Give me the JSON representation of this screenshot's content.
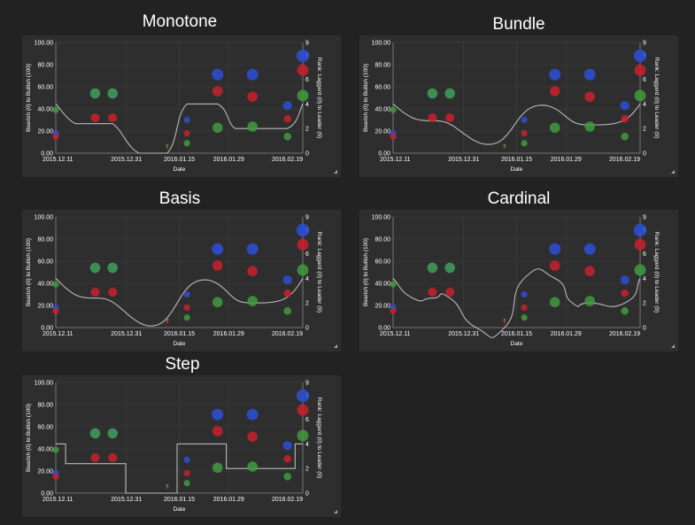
{
  "chart_data": [
    {
      "type": "scatter",
      "title": "Monotone",
      "curve": "monotone",
      "xlabel": "Date",
      "ylabel": "Bearish (0) to Bullish (100)",
      "y2label": "Rank: Laggard (0) to Leader (9)",
      "x_ticks": [
        "2015.12.11",
        "2015.12.31",
        "2016.01.15",
        "2016.01.29",
        "2016.02.19"
      ],
      "y_ticks": [
        "0.00",
        "20.00",
        "40.00",
        "60.00",
        "80.00",
        "100.00"
      ],
      "y2_ticks": [
        "0",
        "2",
        "4",
        "6",
        "8",
        "9"
      ],
      "ylim": [
        0,
        100
      ],
      "y2lim": [
        0,
        9
      ],
      "grid": true,
      "series": [
        {
          "color": "#2a4fd6",
          "points": [
            [
              0,
              18,
              5
            ],
            [
              18,
              54,
              8
            ],
            [
              26,
              54,
              8
            ],
            [
              60,
              30,
              5
            ],
            [
              74,
              71,
              9
            ],
            [
              90,
              71,
              9
            ],
            [
              106,
              43,
              7
            ],
            [
              113,
              88,
              10
            ]
          ]
        },
        {
          "color": "#c8202c",
          "points": [
            [
              0,
              15,
              5
            ],
            [
              18,
              32,
              7
            ],
            [
              26,
              32,
              7
            ],
            [
              51,
              5,
              2
            ],
            [
              60,
              18,
              5
            ],
            [
              74,
              56,
              8
            ],
            [
              90,
              51,
              8
            ],
            [
              106,
              31,
              6
            ],
            [
              113,
              75,
              9
            ]
          ]
        },
        {
          "color": "#3f9a3f",
          "points": [
            [
              0,
              39,
              5
            ],
            [
              18,
              54,
              8
            ],
            [
              26,
              54,
              8
            ],
            [
              51,
              7,
              2
            ],
            [
              60,
              9,
              5
            ],
            [
              74,
              23,
              8
            ],
            [
              90,
              24,
              8
            ],
            [
              106,
              15,
              6
            ],
            [
              113,
              52,
              9
            ]
          ]
        }
      ],
      "line": [
        [
          0,
          4
        ],
        [
          9,
          2.4
        ],
        [
          18,
          2.4
        ],
        [
          26,
          2.4
        ],
        [
          38,
          0
        ],
        [
          51,
          0
        ],
        [
          60,
          4
        ],
        [
          74,
          4
        ],
        [
          82,
          2
        ],
        [
          90,
          2
        ],
        [
          106,
          2
        ],
        [
          113,
          4
        ]
      ]
    },
    {
      "type": "scatter",
      "title": "Bundle",
      "curve": "bundle",
      "xlabel": "Date",
      "ylabel": "Bearish (0) to Bullish (100)",
      "y2label": "Rank: Laggard (0) to Leader (9)",
      "x_ticks": [
        "2015.12.11",
        "2015.12.31",
        "2016.01.15",
        "2016.01.29",
        "2016.02.19"
      ],
      "y_ticks": [
        "0.00",
        "20.00",
        "40.00",
        "60.00",
        "80.00",
        "100.00"
      ],
      "y2_ticks": [
        "0",
        "2",
        "4",
        "6",
        "8",
        "9"
      ],
      "ylim": [
        0,
        100
      ],
      "y2lim": [
        0,
        9
      ],
      "grid": true,
      "series": [
        {
          "color": "#2a4fd6",
          "points": [
            [
              0,
              18,
              5
            ],
            [
              18,
              54,
              8
            ],
            [
              26,
              54,
              8
            ],
            [
              60,
              30,
              5
            ],
            [
              74,
              71,
              9
            ],
            [
              90,
              71,
              9
            ],
            [
              106,
              43,
              7
            ],
            [
              113,
              88,
              10
            ]
          ]
        },
        {
          "color": "#c8202c",
          "points": [
            [
              0,
              15,
              5
            ],
            [
              18,
              32,
              7
            ],
            [
              26,
              32,
              7
            ],
            [
              51,
              5,
              2
            ],
            [
              60,
              18,
              5
            ],
            [
              74,
              56,
              8
            ],
            [
              90,
              51,
              8
            ],
            [
              106,
              31,
              6
            ],
            [
              113,
              75,
              9
            ]
          ]
        },
        {
          "color": "#3f9a3f",
          "points": [
            [
              0,
              39,
              5
            ],
            [
              18,
              54,
              8
            ],
            [
              26,
              54,
              8
            ],
            [
              51,
              7,
              2
            ],
            [
              60,
              9,
              5
            ],
            [
              74,
              23,
              8
            ],
            [
              90,
              24,
              8
            ],
            [
              106,
              15,
              6
            ],
            [
              113,
              52,
              9
            ]
          ]
        }
      ],
      "line": [
        [
          0,
          4
        ],
        [
          9,
          2.4
        ],
        [
          18,
          2.4
        ],
        [
          26,
          2.4
        ],
        [
          38,
          0
        ],
        [
          51,
          0
        ],
        [
          60,
          4
        ],
        [
          74,
          4
        ],
        [
          82,
          2
        ],
        [
          90,
          2
        ],
        [
          106,
          2
        ],
        [
          113,
          4
        ]
      ]
    },
    {
      "type": "scatter",
      "title": "Basis",
      "curve": "basis",
      "xlabel": "Date",
      "ylabel": "Bearish (0) to Bullish (100)",
      "y2label": "Rank: Laggard (0) to Leader (9)",
      "x_ticks": [
        "2015.12.11",
        "2015.12.31",
        "2016.01.15",
        "2016.01.29",
        "2016.02.19"
      ],
      "y_ticks": [
        "0.00",
        "20.00",
        "40.00",
        "60.00",
        "80.00",
        "100.00"
      ],
      "y2_ticks": [
        "0",
        "2",
        "4",
        "6",
        "8",
        "9"
      ],
      "ylim": [
        0,
        100
      ],
      "y2lim": [
        0,
        9
      ],
      "grid": true,
      "series": [
        {
          "color": "#2a4fd6",
          "points": [
            [
              0,
              18,
              5
            ],
            [
              18,
              54,
              8
            ],
            [
              26,
              54,
              8
            ],
            [
              60,
              30,
              5
            ],
            [
              74,
              71,
              9
            ],
            [
              90,
              71,
              9
            ],
            [
              106,
              43,
              7
            ],
            [
              113,
              88,
              10
            ]
          ]
        },
        {
          "color": "#c8202c",
          "points": [
            [
              0,
              15,
              5
            ],
            [
              18,
              32,
              7
            ],
            [
              26,
              32,
              7
            ],
            [
              51,
              5,
              2
            ],
            [
              60,
              18,
              5
            ],
            [
              74,
              56,
              8
            ],
            [
              90,
              51,
              8
            ],
            [
              106,
              31,
              6
            ],
            [
              113,
              75,
              9
            ]
          ]
        },
        {
          "color": "#3f9a3f",
          "points": [
            [
              0,
              39,
              5
            ],
            [
              18,
              54,
              8
            ],
            [
              26,
              54,
              8
            ],
            [
              51,
              7,
              2
            ],
            [
              60,
              9,
              5
            ],
            [
              74,
              23,
              8
            ],
            [
              90,
              24,
              8
            ],
            [
              106,
              15,
              6
            ],
            [
              113,
              52,
              9
            ]
          ]
        }
      ],
      "line": [
        [
          0,
          4
        ],
        [
          9,
          2.4
        ],
        [
          18,
          2.4
        ],
        [
          26,
          2.4
        ],
        [
          38,
          0
        ],
        [
          51,
          0
        ],
        [
          60,
          4
        ],
        [
          74,
          4
        ],
        [
          82,
          2
        ],
        [
          90,
          2
        ],
        [
          106,
          2
        ],
        [
          113,
          4
        ]
      ]
    },
    {
      "type": "scatter",
      "title": "Cardinal",
      "curve": "cardinal",
      "xlabel": "Date",
      "ylabel": "Bearish (0) to Bullish (100)",
      "y2label": "Rank: Laggard (0) to Leader (9)",
      "x_ticks": [
        "2015.12.11",
        "2015.12.31",
        "2016.01.15",
        "2016.01.29",
        "2016.02.19"
      ],
      "y_ticks": [
        "0.00",
        "20.00",
        "40.00",
        "60.00",
        "80.00",
        "100.00"
      ],
      "y2_ticks": [
        "0",
        "2",
        "4",
        "6",
        "8",
        "9"
      ],
      "ylim": [
        0,
        100
      ],
      "y2lim": [
        0,
        9
      ],
      "grid": true,
      "series": [
        {
          "color": "#2a4fd6",
          "points": [
            [
              0,
              18,
              5
            ],
            [
              18,
              54,
              8
            ],
            [
              26,
              54,
              8
            ],
            [
              60,
              30,
              5
            ],
            [
              74,
              71,
              9
            ],
            [
              90,
              71,
              9
            ],
            [
              106,
              43,
              7
            ],
            [
              113,
              88,
              10
            ]
          ]
        },
        {
          "color": "#c8202c",
          "points": [
            [
              0,
              15,
              5
            ],
            [
              18,
              32,
              7
            ],
            [
              26,
              32,
              7
            ],
            [
              51,
              5,
              2
            ],
            [
              60,
              18,
              5
            ],
            [
              74,
              56,
              8
            ],
            [
              90,
              51,
              8
            ],
            [
              106,
              31,
              6
            ],
            [
              113,
              75,
              9
            ]
          ]
        },
        {
          "color": "#3f9a3f",
          "points": [
            [
              0,
              39,
              5
            ],
            [
              18,
              54,
              8
            ],
            [
              26,
              54,
              8
            ],
            [
              51,
              7,
              2
            ],
            [
              60,
              9,
              5
            ],
            [
              74,
              23,
              8
            ],
            [
              90,
              24,
              8
            ],
            [
              106,
              15,
              6
            ],
            [
              113,
              52,
              9
            ]
          ]
        }
      ],
      "line": [
        [
          0,
          4
        ],
        [
          9,
          2.4
        ],
        [
          18,
          2.4
        ],
        [
          26,
          2.4
        ],
        [
          38,
          0
        ],
        [
          51,
          0
        ],
        [
          60,
          4
        ],
        [
          74,
          4
        ],
        [
          82,
          2
        ],
        [
          90,
          2
        ],
        [
          106,
          2
        ],
        [
          113,
          4
        ]
      ]
    },
    {
      "type": "scatter",
      "title": "Step",
      "curve": "step",
      "xlabel": "Date",
      "ylabel": "Bearish (0) to Bullish (100)",
      "y2label": "Rank: Laggard (0) to Leader (9)",
      "x_ticks": [
        "2015.12.11",
        "2015.12.31",
        "2016.01.15",
        "2016.01.29",
        "2016.02.19"
      ],
      "y_ticks": [
        "0.00",
        "20.00",
        "40.00",
        "60.00",
        "80.00",
        "100.00"
      ],
      "y2_ticks": [
        "0",
        "2",
        "4",
        "6",
        "8",
        "9"
      ],
      "ylim": [
        0,
        100
      ],
      "y2lim": [
        0,
        9
      ],
      "grid": true,
      "series": [
        {
          "color": "#2a4fd6",
          "points": [
            [
              0,
              18,
              5
            ],
            [
              18,
              54,
              8
            ],
            [
              26,
              54,
              8
            ],
            [
              60,
              30,
              5
            ],
            [
              74,
              71,
              9
            ],
            [
              90,
              71,
              9
            ],
            [
              106,
              43,
              7
            ],
            [
              113,
              88,
              10
            ]
          ]
        },
        {
          "color": "#c8202c",
          "points": [
            [
              0,
              15,
              5
            ],
            [
              18,
              32,
              7
            ],
            [
              26,
              32,
              7
            ],
            [
              51,
              5,
              2
            ],
            [
              60,
              18,
              5
            ],
            [
              74,
              56,
              8
            ],
            [
              90,
              51,
              8
            ],
            [
              106,
              31,
              6
            ],
            [
              113,
              75,
              9
            ]
          ]
        },
        {
          "color": "#3f9a3f",
          "points": [
            [
              0,
              39,
              5
            ],
            [
              18,
              54,
              8
            ],
            [
              26,
              54,
              8
            ],
            [
              51,
              7,
              2
            ],
            [
              60,
              9,
              5
            ],
            [
              74,
              23,
              8
            ],
            [
              90,
              24,
              8
            ],
            [
              106,
              15,
              6
            ],
            [
              113,
              52,
              9
            ]
          ]
        }
      ],
      "line": [
        [
          0,
          4
        ],
        [
          9,
          2.4
        ],
        [
          18,
          2.4
        ],
        [
          26,
          2.4
        ],
        [
          38,
          0
        ],
        [
          51,
          0
        ],
        [
          60,
          4
        ],
        [
          74,
          4
        ],
        [
          82,
          2
        ],
        [
          90,
          2
        ],
        [
          106,
          2
        ],
        [
          113,
          4
        ]
      ]
    }
  ]
}
